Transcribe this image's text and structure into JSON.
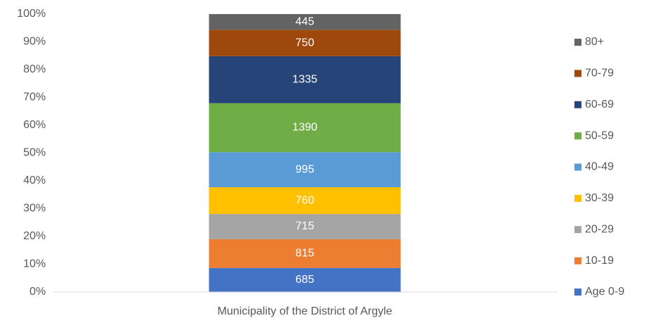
{
  "chart_data": {
    "type": "bar",
    "stacking": "percent",
    "categories": [
      "Municipality of the District of Argyle"
    ],
    "series": [
      {
        "name": "Age 0-9",
        "color": "#4472c4",
        "values": [
          685
        ]
      },
      {
        "name": "10-19",
        "color": "#ed7d31",
        "values": [
          815
        ]
      },
      {
        "name": "20-29",
        "color": "#a5a5a5",
        "values": [
          715
        ]
      },
      {
        "name": "30-39",
        "color": "#ffc000",
        "values": [
          760
        ]
      },
      {
        "name": "40-49",
        "color": "#5b9bd5",
        "values": [
          995
        ]
      },
      {
        "name": "50-59",
        "color": "#70ad47",
        "values": [
          1390
        ]
      },
      {
        "name": "60-69",
        "color": "#264478",
        "values": [
          1335
        ]
      },
      {
        "name": "70-79",
        "color": "#9e480e",
        "values": [
          750
        ]
      },
      {
        "name": "80+",
        "color": "#636363",
        "values": [
          445
        ]
      }
    ],
    "ylim": [
      0,
      100
    ],
    "yticks": [
      {
        "value": 0,
        "label": "0%"
      },
      {
        "value": 10,
        "label": "10%"
      },
      {
        "value": 20,
        "label": "20%"
      },
      {
        "value": 30,
        "label": "30%"
      },
      {
        "value": 40,
        "label": "40%"
      },
      {
        "value": 50,
        "label": "50%"
      },
      {
        "value": 60,
        "label": "60%"
      },
      {
        "value": 70,
        "label": "70%"
      },
      {
        "value": 80,
        "label": "80%"
      },
      {
        "value": 90,
        "label": "90%"
      },
      {
        "value": 100,
        "label": "100%"
      }
    ],
    "grid": false,
    "legend": "right"
  }
}
